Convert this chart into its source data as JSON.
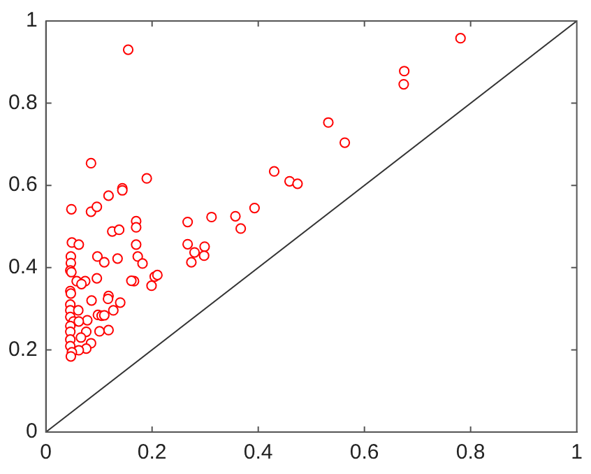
{
  "chart_data": {
    "type": "scatter",
    "xlim": [
      0,
      1
    ],
    "ylim": [
      0,
      1
    ],
    "xticks": [
      0,
      0.2,
      0.4,
      0.6,
      0.8,
      1
    ],
    "yticks": [
      0,
      0.2,
      0.4,
      0.6,
      0.8,
      1
    ],
    "grid": false,
    "legend": false,
    "series": [
      {
        "type": "scatter",
        "marker": "circle",
        "color": "#ff0000",
        "x": [
          0.155,
          0.085,
          0.118,
          0.144,
          0.144,
          0.19,
          0.43,
          0.459,
          0.474,
          0.781,
          0.675,
          0.674,
          0.532,
          0.563,
          0.17,
          0.17,
          0.267,
          0.312,
          0.357,
          0.393,
          0.367,
          0.17,
          0.173,
          0.182,
          0.267,
          0.28,
          0.299,
          0.298,
          0.274,
          0.205,
          0.21,
          0.199,
          0.166,
          0.048,
          0.085,
          0.096,
          0.125,
          0.138,
          0.049,
          0.062,
          0.047,
          0.097,
          0.135,
          0.11,
          0.047,
          0.046,
          0.048,
          0.161,
          0.096,
          0.074,
          0.058,
          0.067,
          0.046,
          0.047,
          0.118,
          0.117,
          0.086,
          0.14,
          0.127,
          0.098,
          0.105,
          0.11,
          0.078,
          0.046,
          0.046,
          0.061,
          0.046,
          0.052,
          0.062,
          0.046,
          0.046,
          0.076,
          0.101,
          0.118,
          0.066,
          0.046,
          0.085,
          0.046,
          0.076,
          0.062,
          0.049,
          0.047
        ],
        "values": [
          0.93,
          0.654,
          0.575,
          0.593,
          0.588,
          0.617,
          0.634,
          0.61,
          0.604,
          0.958,
          0.878,
          0.846,
          0.753,
          0.704,
          0.513,
          0.498,
          0.511,
          0.523,
          0.525,
          0.545,
          0.495,
          0.456,
          0.427,
          0.41,
          0.457,
          0.437,
          0.451,
          0.429,
          0.413,
          0.378,
          0.382,
          0.356,
          0.367,
          0.542,
          0.536,
          0.548,
          0.488,
          0.492,
          0.461,
          0.456,
          0.427,
          0.427,
          0.422,
          0.413,
          0.411,
          0.393,
          0.389,
          0.368,
          0.374,
          0.367,
          0.367,
          0.36,
          0.343,
          0.337,
          0.331,
          0.324,
          0.32,
          0.315,
          0.296,
          0.285,
          0.283,
          0.284,
          0.272,
          0.31,
          0.296,
          0.296,
          0.28,
          0.269,
          0.269,
          0.258,
          0.244,
          0.244,
          0.245,
          0.248,
          0.23,
          0.225,
          0.216,
          0.209,
          0.203,
          0.199,
          0.194,
          0.184
        ]
      },
      {
        "type": "line",
        "marker": "none",
        "color": "#333333",
        "x": [
          0,
          1
        ],
        "values": [
          0,
          1
        ]
      }
    ]
  }
}
